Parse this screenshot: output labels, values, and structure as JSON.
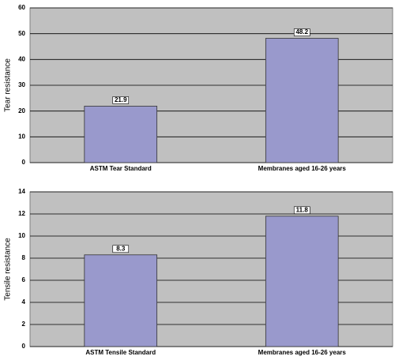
{
  "chart_data": [
    {
      "type": "bar",
      "y_label": "Tear resistance",
      "categories": [
        "ASTM Tear Standard",
        "Membranes aged 16-26 years"
      ],
      "values": [
        21.9,
        48.2
      ],
      "color": "#9999cc",
      "ylim": [
        0,
        60
      ],
      "yticks": [
        0,
        10,
        20,
        30,
        40,
        50,
        60
      ],
      "grid": true
    },
    {
      "type": "bar",
      "y_label": "Tensile resistance",
      "categories": [
        "ASTM Tensile Standard",
        "Membranes aged 16-26 years"
      ],
      "values": [
        8.3,
        11.8
      ],
      "color": "#9999cc",
      "ylim": [
        0,
        14
      ],
      "yticks": [
        0,
        2,
        4,
        6,
        8,
        10,
        12,
        14
      ],
      "grid": true
    }
  ]
}
